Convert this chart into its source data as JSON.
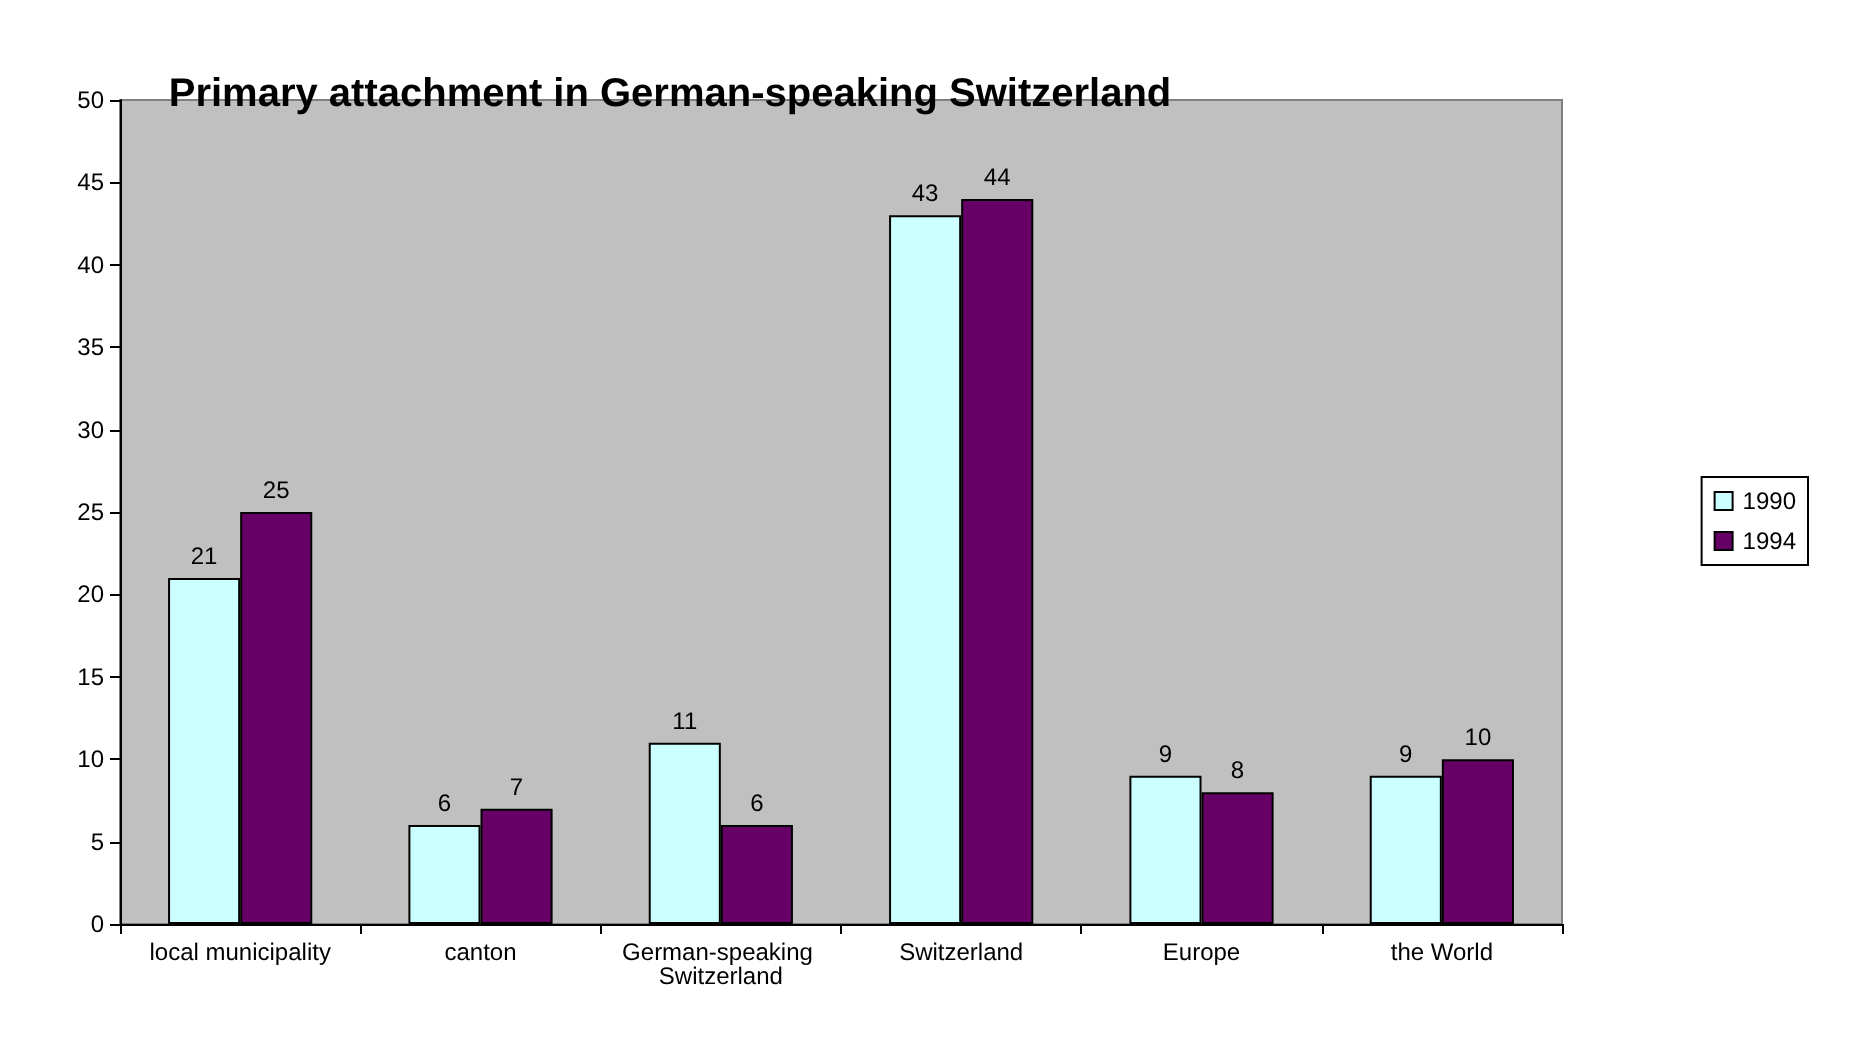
{
  "chart_data": {
    "type": "bar",
    "title": "Primary attachment in German-speaking Switzerland",
    "categories": [
      "local municipality",
      "canton",
      "German-speaking Switzerland",
      "Switzerland",
      "Europe",
      "the World"
    ],
    "series": [
      {
        "name": "1990",
        "color": "#ccffff",
        "values": [
          21,
          6,
          11,
          43,
          9,
          9
        ]
      },
      {
        "name": "1994",
        "color": "#660066",
        "values": [
          25,
          7,
          6,
          44,
          8,
          10
        ]
      }
    ],
    "ylim": [
      0,
      50
    ],
    "yticks": [
      0,
      5,
      10,
      15,
      20,
      25,
      30,
      35,
      40,
      45,
      50
    ],
    "grid": false,
    "legend": "right",
    "data_labels": true
  }
}
